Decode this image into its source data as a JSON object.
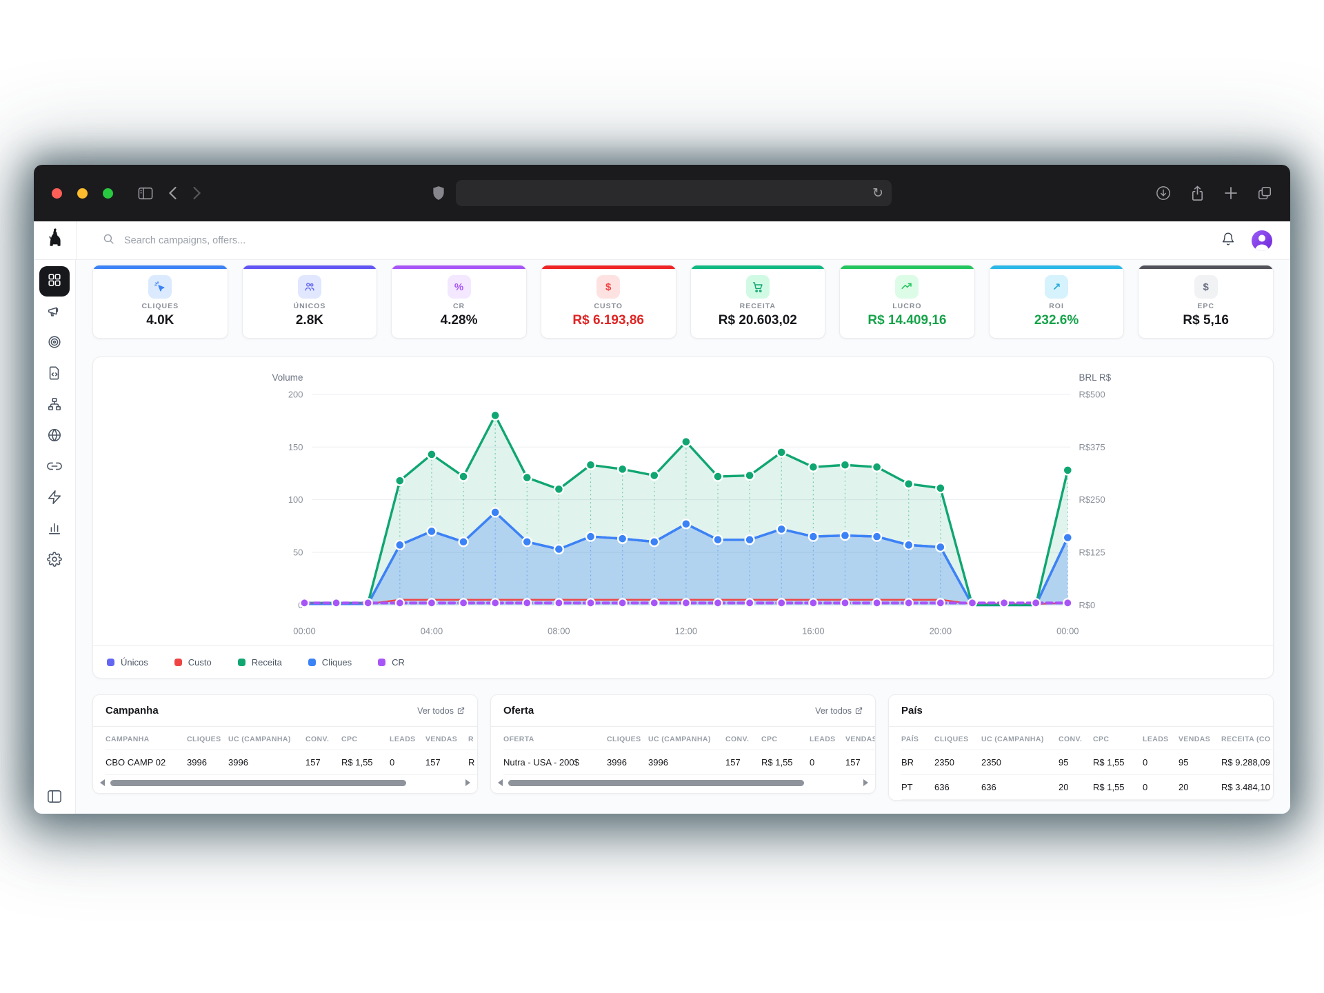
{
  "browser": {
    "url_value": "",
    "controls": [
      "close",
      "minimize",
      "zoom"
    ],
    "control_colors": {
      "close": "#ff5f57",
      "minimize": "#febc2e",
      "zoom": "#28c840"
    }
  },
  "header": {
    "search_placeholder": "Search campaigns, offers..."
  },
  "sidebar": {
    "items": [
      {
        "id": "dashboard",
        "active": true
      },
      {
        "id": "campaigns",
        "active": false
      },
      {
        "id": "offers",
        "active": false
      },
      {
        "id": "landing-pages",
        "active": false
      },
      {
        "id": "funnels",
        "active": false
      },
      {
        "id": "domains",
        "active": false
      },
      {
        "id": "links",
        "active": false
      },
      {
        "id": "automation",
        "active": false
      },
      {
        "id": "reports",
        "active": false
      },
      {
        "id": "settings",
        "active": false
      }
    ]
  },
  "kpis": [
    {
      "label": "CLIQUES",
      "value": "4.0K",
      "accent": "#3b82f6",
      "icon": "cursor-click",
      "chip_bg": "#dbeafe",
      "chip_fg": "#3b82f6",
      "value_color": "#17181c"
    },
    {
      "label": "ÚNICOS",
      "value": "2.8K",
      "accent": "#6156f5",
      "icon": "users",
      "chip_bg": "#e0e7ff",
      "chip_fg": "#6366f1",
      "value_color": "#17181c"
    },
    {
      "label": "CR",
      "value": "4.28%",
      "accent": "#a855f7",
      "icon": "percent",
      "glyph": "%",
      "chip_bg": "#f3e8ff",
      "chip_fg": "#a855f7",
      "value_color": "#17181c"
    },
    {
      "label": "CUSTO",
      "value": "R$ 6.193,86",
      "accent": "#ef2424",
      "icon": "dollar",
      "glyph": "$",
      "chip_bg": "#fee2e2",
      "chip_fg": "#ef4444",
      "value_color": "#e02424"
    },
    {
      "label": "RECEITA",
      "value": "R$ 20.603,02",
      "accent": "#10b981",
      "icon": "cart",
      "chip_bg": "#d1fae5",
      "chip_fg": "#10a671",
      "value_color": "#17181c"
    },
    {
      "label": "LUCRO",
      "value": "R$ 14.409,16",
      "accent": "#22c55e",
      "icon": "trend-up",
      "chip_bg": "#dcfce7",
      "chip_fg": "#22c55e",
      "value_color": "#16a34a"
    },
    {
      "label": "ROI",
      "value": "232.6%",
      "accent": "#29b8e8",
      "icon": "arrow-up-right",
      "glyph": "↗",
      "chip_bg": "#d6f2fc",
      "chip_fg": "#2aa9db",
      "value_color": "#16a34a"
    },
    {
      "label": "EPC",
      "value": "R$ 5,16",
      "accent": "#52525b",
      "icon": "dollar",
      "glyph": "$",
      "chip_bg": "#f1f2f4",
      "chip_fg": "#6b7280",
      "value_color": "#17181c"
    }
  ],
  "chart_data": {
    "type": "line",
    "points_per_hour": 25,
    "x_tick_hours": [
      0,
      4,
      8,
      12,
      16,
      20,
      24
    ],
    "x_tick_labels": [
      "00:00",
      "04:00",
      "08:00",
      "12:00",
      "16:00",
      "20:00",
      "00:00"
    ],
    "left_axis": {
      "title": "Volume",
      "ticks": [
        0,
        50,
        100,
        150,
        200
      ],
      "max": 200
    },
    "right_axis": {
      "title": "BRL R$",
      "ticks": [
        "R$0",
        "R$125",
        "R$250",
        "R$375",
        "R$500"
      ]
    },
    "grid": true,
    "legend_position": "bottom",
    "series": [
      {
        "name": "Únicos",
        "color": "#6366f1",
        "values": [
          1,
          1,
          1,
          57,
          70,
          60,
          88,
          60,
          53,
          65,
          63,
          60,
          77,
          62,
          62,
          72,
          65,
          66,
          65,
          57,
          55,
          0,
          0,
          0,
          64
        ]
      },
      {
        "name": "Custo",
        "color": "#ef4444",
        "values": [
          1,
          1,
          1,
          5,
          5,
          5,
          5,
          5,
          5,
          5,
          5,
          5,
          5,
          5,
          5,
          5,
          5,
          5,
          5,
          5,
          5,
          1,
          1,
          1,
          2
        ]
      },
      {
        "name": "Receita",
        "color": "#10a671",
        "area": true,
        "values": [
          2,
          2,
          2,
          118,
          143,
          122,
          180,
          121,
          110,
          133,
          129,
          123,
          155,
          122,
          123,
          145,
          131,
          133,
          131,
          115,
          111,
          0,
          0,
          0,
          128
        ]
      },
      {
        "name": "Cliques",
        "color": "#3b82f6",
        "area": true,
        "values": [
          1,
          1,
          1,
          57,
          70,
          60,
          88,
          60,
          53,
          65,
          63,
          60,
          77,
          62,
          62,
          72,
          65,
          66,
          65,
          57,
          55,
          0,
          0,
          0,
          64
        ]
      },
      {
        "name": "CR",
        "color": "#a855f7",
        "dashed": true,
        "values": [
          2,
          2,
          2,
          2,
          2,
          2,
          2,
          2,
          2,
          2,
          2,
          2,
          2,
          2,
          2,
          2,
          2,
          2,
          2,
          2,
          2,
          2,
          2,
          2,
          2
        ]
      }
    ]
  },
  "tables": [
    {
      "title": "Campanha",
      "link_label": "Ver todos",
      "scrollbar": true,
      "headers": [
        "CAMPANHA",
        "CLIQUES",
        "UC (CAMPANHA)",
        "CONV.",
        "CPC",
        "LEADS",
        "VENDAS",
        "R"
      ],
      "rows": [
        [
          "CBO CAMP 02",
          "3996",
          "3996",
          "157",
          "R$ 1,55",
          "0",
          "157",
          "R"
        ]
      ]
    },
    {
      "title": "Oferta",
      "link_label": "Ver todos",
      "scrollbar": true,
      "headers": [
        "OFERTA",
        "CLIQUES",
        "UC (CAMPANHA)",
        "CONV.",
        "CPC",
        "LEADS",
        "VENDAS"
      ],
      "rows": [
        [
          "Nutra - USA - 200$",
          "3996",
          "3996",
          "157",
          "R$ 1,55",
          "0",
          "157"
        ]
      ]
    },
    {
      "title": "País",
      "link_label": null,
      "scrollbar": false,
      "headers": [
        "PAÍS",
        "CLIQUES",
        "UC (CAMPANHA)",
        "CONV.",
        "CPC",
        "LEADS",
        "VENDAS",
        "RECEITA (CO"
      ],
      "rows": [
        [
          "BR",
          "2350",
          "2350",
          "95",
          "R$ 1,55",
          "0",
          "95",
          "R$ 9.288,09"
        ],
        [
          "PT",
          "636",
          "636",
          "20",
          "R$ 1,55",
          "0",
          "20",
          "R$ 3.484,10"
        ]
      ]
    }
  ]
}
